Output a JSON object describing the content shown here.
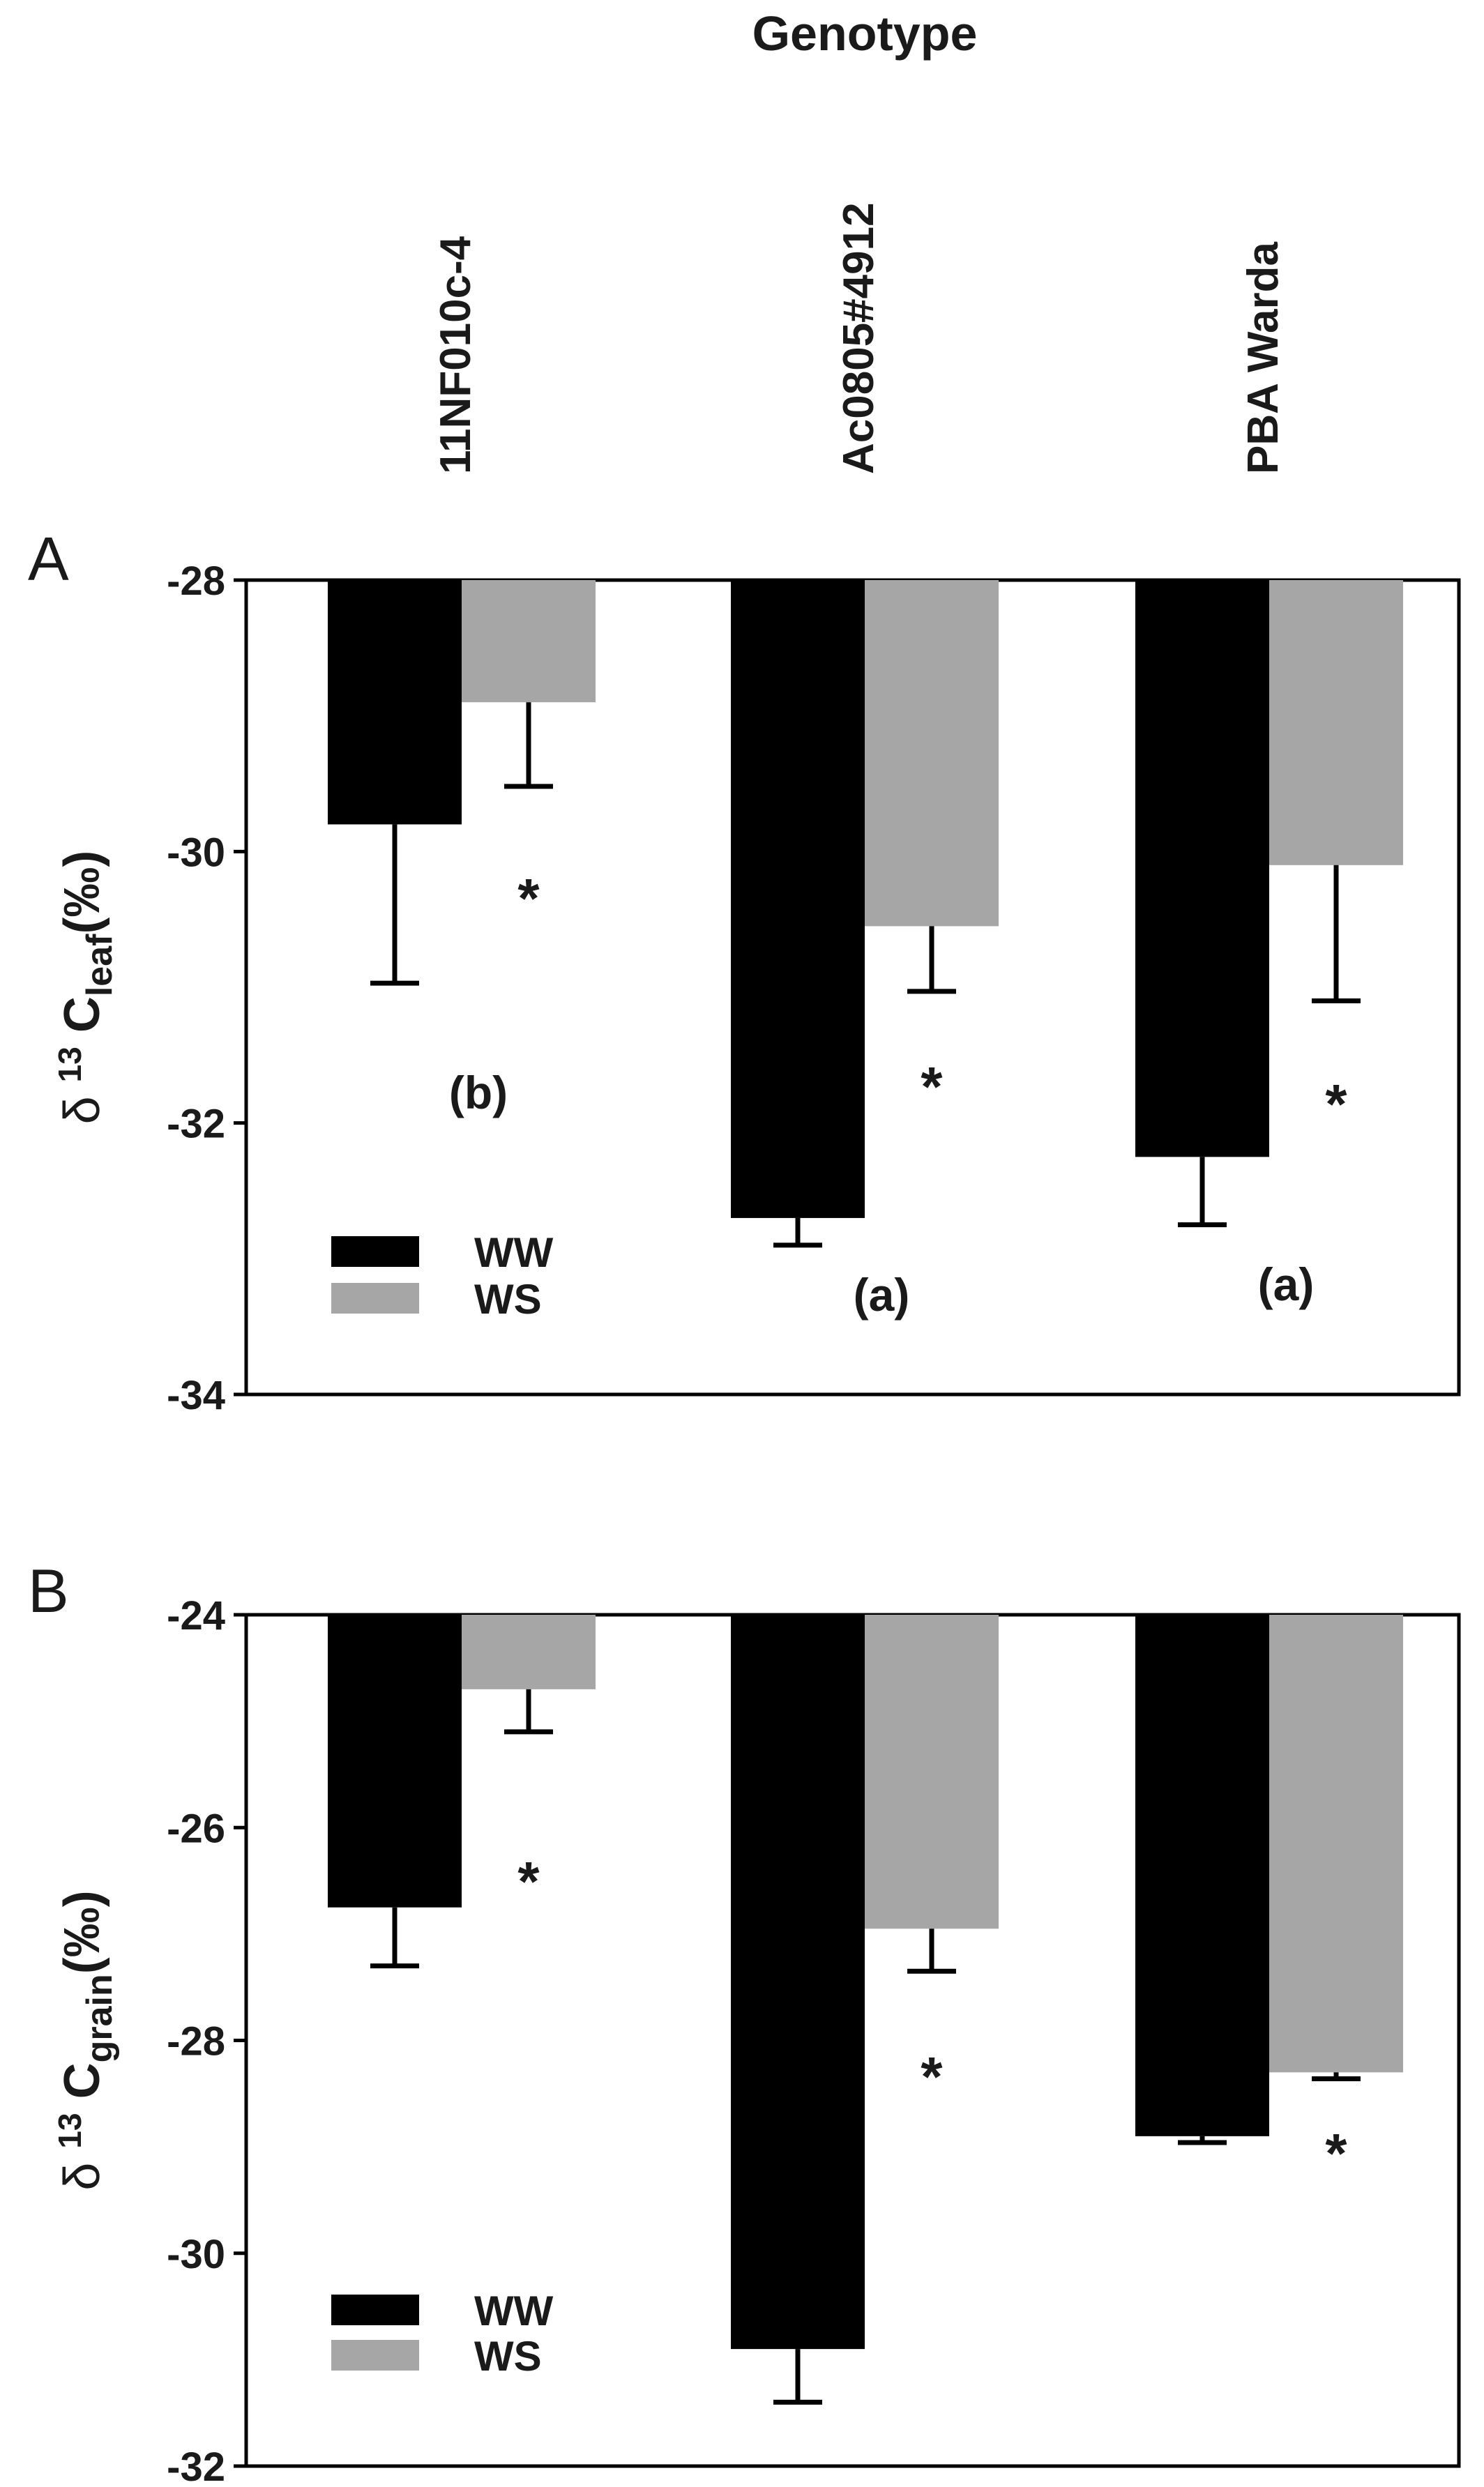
{
  "chart_data": [
    {
      "panel_letter": "A",
      "type": "bar",
      "title": "Genotype",
      "categories": [
        "11NF010c-4",
        "Ac0805#4912",
        "PBA Warda"
      ],
      "series": [
        {
          "name": "WW",
          "color": "#000000",
          "values": [
            -29.8,
            -32.7,
            -32.25
          ],
          "error": [
            1.17,
            0.2,
            0.5
          ]
        },
        {
          "name": "WS",
          "color": "#a6a6a6",
          "values": [
            -28.9,
            -30.55,
            -30.1
          ],
          "error": [
            0.62,
            0.48,
            1.0
          ]
        }
      ],
      "annotations": [
        "(b)",
        "(a)",
        "(a)"
      ],
      "significance": [
        "*",
        "*",
        "*"
      ],
      "ylabel": {
        "delta": "δ",
        "sup": "13",
        "main": "C",
        "sub": "leaf",
        "unit": "(‰)"
      },
      "yticks": [
        "-28",
        "-30",
        "-32",
        "-34"
      ],
      "ylim": [
        -34,
        -28
      ],
      "legend_position": "bottom-left"
    },
    {
      "panel_letter": "B",
      "type": "bar",
      "categories": [
        "11NF010c-4",
        "Ac0805#4912",
        "PBA Warda"
      ],
      "series": [
        {
          "name": "WW",
          "color": "#000000",
          "values": [
            -26.75,
            -30.9,
            -28.9
          ],
          "error": [
            0.55,
            0.5,
            0.06
          ]
        },
        {
          "name": "WS",
          "color": "#a6a6a6",
          "values": [
            -24.7,
            -26.95,
            -28.3
          ],
          "error": [
            0.4,
            0.4,
            0.06
          ]
        }
      ],
      "significance": [
        "*",
        "*",
        "*"
      ],
      "ylabel": {
        "delta": "δ",
        "sup": "13",
        "main": "C",
        "sub": "grain",
        "unit": "(‰)"
      },
      "yticks": [
        "-24",
        "-26",
        "-28",
        "-30",
        "-32"
      ],
      "ylim": [
        -32,
        -24
      ],
      "legend_position": "bottom-left"
    }
  ]
}
